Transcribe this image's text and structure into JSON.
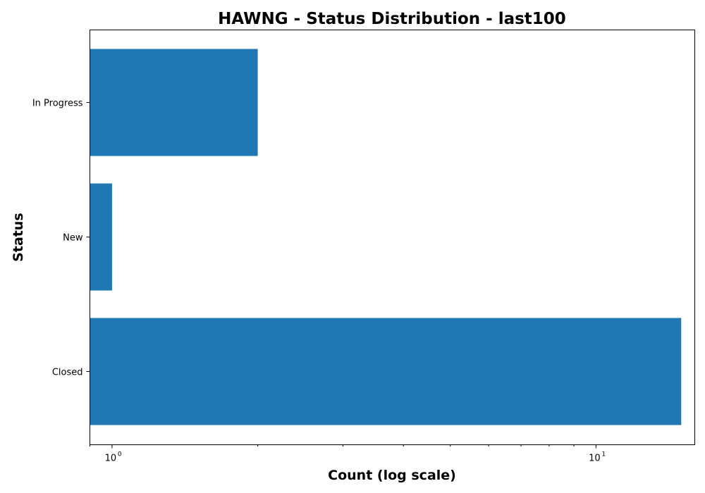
{
  "chart_data": {
    "type": "bar",
    "orientation": "horizontal",
    "title": "HAWNG - Status Distribution - last100",
    "xlabel": "Count (log scale)",
    "ylabel": "Status",
    "x_scale": "log",
    "xlim": [
      0.9,
      16
    ],
    "categories": [
      "Closed",
      "New",
      "In Progress"
    ],
    "values": [
      15,
      1,
      2
    ],
    "x_ticks": [
      {
        "base": "10",
        "exp": "0",
        "value": 1
      },
      {
        "base": "10",
        "exp": "1",
        "value": 10
      }
    ],
    "bar_color": "#1f77b4",
    "grid": false,
    "legend": false
  }
}
